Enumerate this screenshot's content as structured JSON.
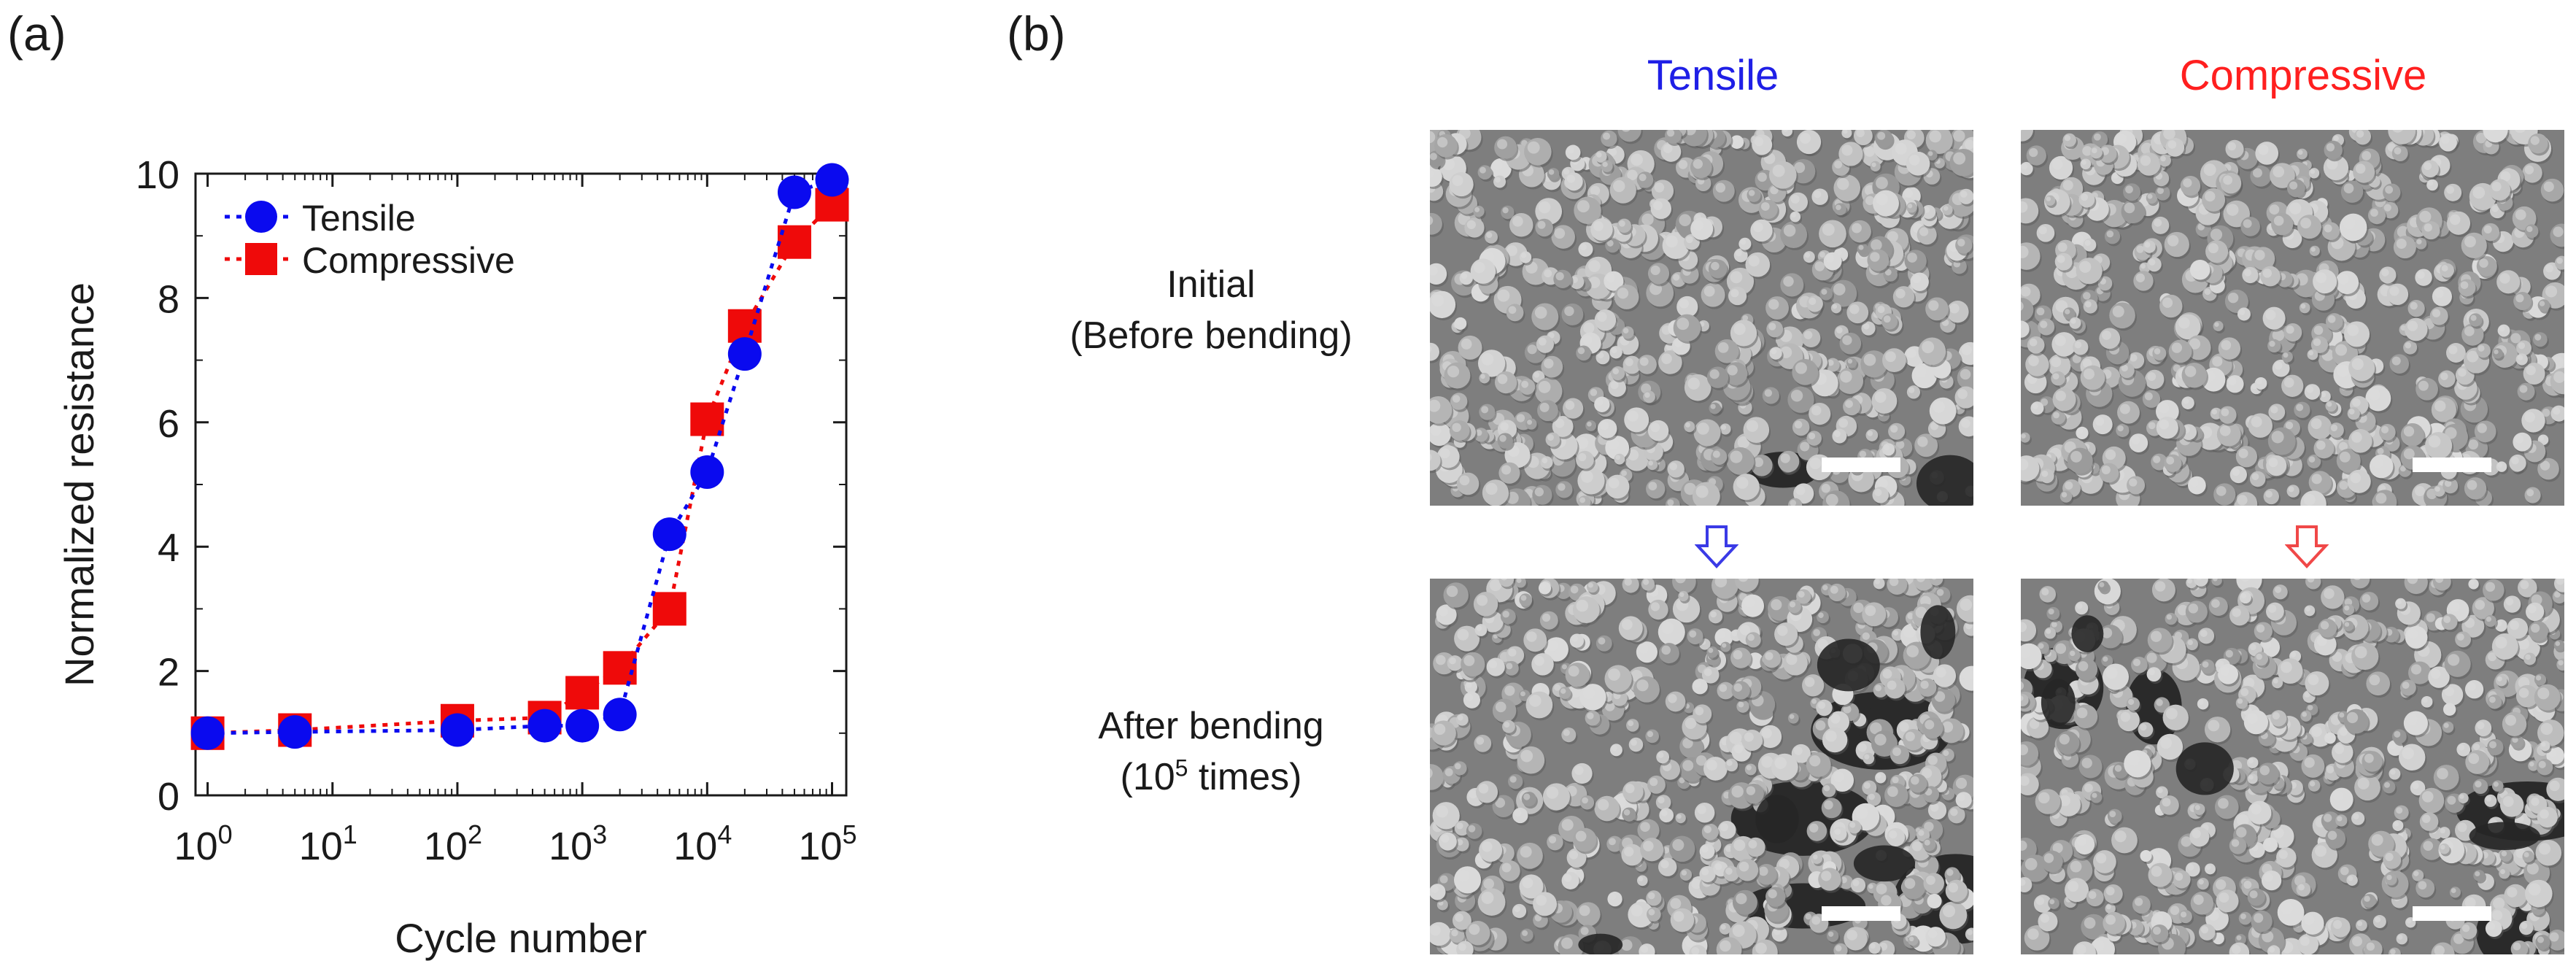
{
  "panel_a_label": "(a)",
  "panel_b_label": "(b)",
  "chart_data": {
    "type": "scatter",
    "xscale": "log",
    "xlabel": "Cycle number",
    "ylabel": "Normalized resistance",
    "xlim": [
      0.8,
      130000
    ],
    "ylim": [
      0,
      10
    ],
    "yticks": [
      0,
      2,
      4,
      6,
      8,
      10
    ],
    "xticks": [
      {
        "value": 1,
        "base": "10",
        "exp": "0"
      },
      {
        "value": 10,
        "base": "10",
        "exp": "1"
      },
      {
        "value": 100,
        "base": "10",
        "exp": "2"
      },
      {
        "value": 1000,
        "base": "10",
        "exp": "3"
      },
      {
        "value": 10000,
        "base": "10",
        "exp": "4"
      },
      {
        "value": 100000,
        "base": "10",
        "exp": "5"
      }
    ],
    "legend_position": "top-left",
    "series": [
      {
        "name": "Tensile",
        "color": "#0a0aef",
        "marker": "circle",
        "line": "dotted",
        "x": [
          1,
          5,
          100,
          500,
          1000,
          2000,
          5000,
          10000,
          20000,
          50000,
          100000
        ],
        "y": [
          1.0,
          1.02,
          1.05,
          1.12,
          1.12,
          1.3,
          4.2,
          5.2,
          7.1,
          9.7,
          9.9
        ]
      },
      {
        "name": "Compressive",
        "color": "#ef0a0a",
        "marker": "square",
        "line": "dotted",
        "x": [
          1,
          5,
          100,
          500,
          1000,
          2000,
          5000,
          10000,
          20000,
          50000,
          100000
        ],
        "y": [
          1.0,
          1.05,
          1.2,
          1.25,
          1.65,
          2.05,
          3.0,
          6.05,
          7.55,
          8.9,
          9.5
        ]
      }
    ]
  },
  "panel_b": {
    "col_tensile": "Tensile",
    "col_tensile_color": "#1f1fe6",
    "col_compressive": "Compressive",
    "col_compressive_color": "#ff1f1f",
    "row_initial_line1": "Initial",
    "row_initial_line2": "(Before bending)",
    "row_after_line1": "After bending",
    "row_after_line2_a": "(10",
    "row_after_line2_sup": "5",
    "row_after_line2_b": " times)",
    "arrow_tensile_color": "#3a3ae6",
    "arrow_compressive_color": "#f04848"
  }
}
